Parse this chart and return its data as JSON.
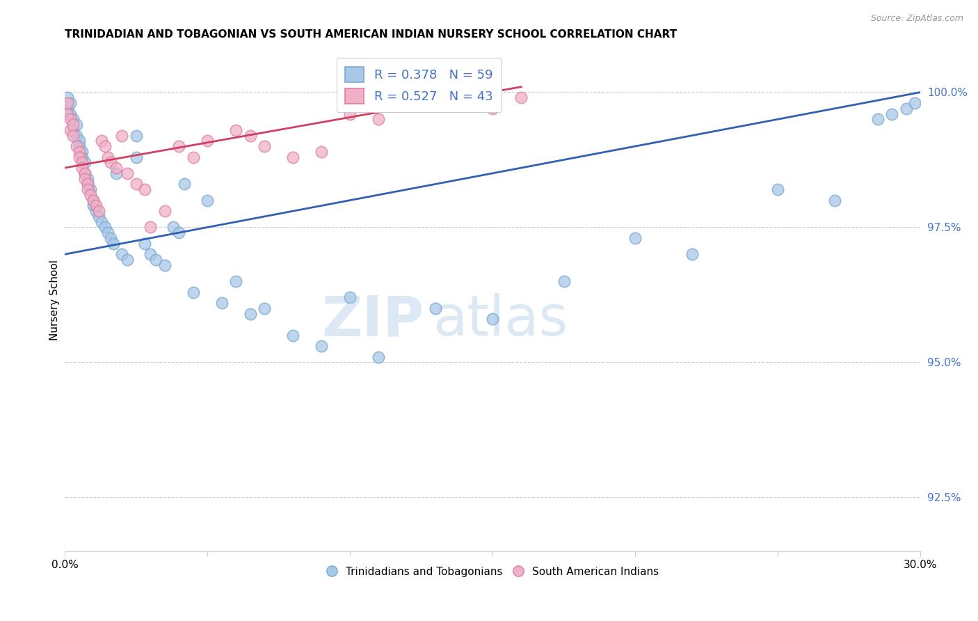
{
  "title": "TRINIDADIAN AND TOBAGONIAN VS SOUTH AMERICAN INDIAN NURSERY SCHOOL CORRELATION CHART",
  "source": "Source: ZipAtlas.com",
  "ylabel": "Nursery School",
  "y_ticks": [
    92.5,
    95.0,
    97.5,
    100.0
  ],
  "y_tick_labels": [
    "92.5%",
    "95.0%",
    "97.5%",
    "100.0%"
  ],
  "legend_blue_label": "R = 0.378   N = 59",
  "legend_pink_label": "R = 0.527   N = 43",
  "legend_bottom_blue": "Trinidadians and Tobagonians",
  "legend_bottom_pink": "South American Indians",
  "blue_color": "#a8c8e8",
  "pink_color": "#f0b0c8",
  "blue_edge_color": "#7aaad0",
  "pink_edge_color": "#e080a0",
  "blue_line_color": "#3060b0",
  "pink_line_color": "#d04060",
  "xlim": [
    0.0,
    0.3
  ],
  "ylim": [
    91.5,
    100.8
  ],
  "blue_x": [
    0.001,
    0.001,
    0.002,
    0.002,
    0.003,
    0.003,
    0.004,
    0.004,
    0.005,
    0.005,
    0.006,
    0.006,
    0.007,
    0.007,
    0.008,
    0.008,
    0.009,
    0.01,
    0.01,
    0.011,
    0.012,
    0.013,
    0.014,
    0.015,
    0.016,
    0.017,
    0.018,
    0.02,
    0.022,
    0.025,
    0.025,
    0.028,
    0.03,
    0.032,
    0.035,
    0.038,
    0.04,
    0.042,
    0.045,
    0.05,
    0.055,
    0.06,
    0.065,
    0.07,
    0.08,
    0.09,
    0.1,
    0.11,
    0.13,
    0.15,
    0.175,
    0.2,
    0.22,
    0.25,
    0.27,
    0.285,
    0.29,
    0.295,
    0.298
  ],
  "blue_y": [
    99.9,
    99.7,
    99.8,
    99.6,
    99.5,
    99.3,
    99.4,
    99.2,
    99.1,
    99.0,
    98.9,
    98.8,
    98.7,
    98.5,
    98.4,
    98.3,
    98.2,
    98.0,
    97.9,
    97.8,
    97.7,
    97.6,
    97.5,
    97.4,
    97.3,
    97.2,
    98.5,
    97.0,
    96.9,
    99.2,
    98.8,
    97.2,
    97.0,
    96.9,
    96.8,
    97.5,
    97.4,
    98.3,
    96.3,
    98.0,
    96.1,
    96.5,
    95.9,
    96.0,
    95.5,
    95.3,
    96.2,
    95.1,
    96.0,
    95.8,
    96.5,
    97.3,
    97.0,
    98.2,
    98.0,
    99.5,
    99.6,
    99.7,
    99.8
  ],
  "pink_x": [
    0.001,
    0.001,
    0.002,
    0.002,
    0.003,
    0.003,
    0.004,
    0.005,
    0.005,
    0.006,
    0.006,
    0.007,
    0.007,
    0.008,
    0.008,
    0.009,
    0.01,
    0.011,
    0.012,
    0.013,
    0.014,
    0.015,
    0.016,
    0.018,
    0.02,
    0.022,
    0.025,
    0.028,
    0.03,
    0.035,
    0.04,
    0.045,
    0.05,
    0.06,
    0.065,
    0.07,
    0.08,
    0.09,
    0.1,
    0.11,
    0.13,
    0.15,
    0.16
  ],
  "pink_y": [
    99.8,
    99.6,
    99.5,
    99.3,
    99.4,
    99.2,
    99.0,
    98.9,
    98.8,
    98.7,
    98.6,
    98.5,
    98.4,
    98.3,
    98.2,
    98.1,
    98.0,
    97.9,
    97.8,
    99.1,
    99.0,
    98.8,
    98.7,
    98.6,
    99.2,
    98.5,
    98.3,
    98.2,
    97.5,
    97.8,
    99.0,
    98.8,
    99.1,
    99.3,
    99.2,
    99.0,
    98.8,
    98.9,
    99.6,
    99.5,
    99.8,
    99.7,
    99.9
  ],
  "blue_line_x0": 0.0,
  "blue_line_y0": 97.0,
  "blue_line_x1": 0.3,
  "blue_line_y1": 100.0,
  "pink_line_x0": 0.0,
  "pink_line_y0": 98.6,
  "pink_line_x1": 0.16,
  "pink_line_y1": 100.1
}
